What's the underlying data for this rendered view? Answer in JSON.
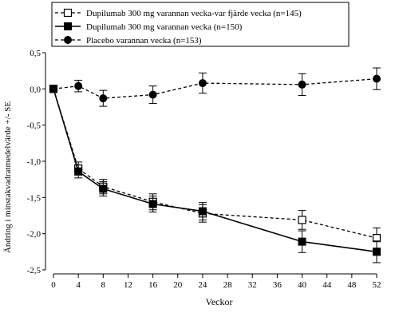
{
  "chart_data": {
    "type": "line",
    "xlabel": "Veckor",
    "ylabel": "Ändring i minstakvadratmedelvärde +/- SE",
    "x": [
      0,
      4,
      8,
      16,
      24,
      40,
      52
    ],
    "x_ticks": [
      "0",
      "4",
      "8",
      "12",
      "16",
      "20",
      "24",
      "28",
      "32",
      "36",
      "40",
      "44",
      "48",
      "52"
    ],
    "x_tick_values": [
      0,
      4,
      8,
      12,
      16,
      20,
      24,
      28,
      32,
      36,
      40,
      44,
      48,
      52
    ],
    "y_ticks": [
      "0,5",
      "0,0",
      "-0,5",
      "-1,0",
      "-1,5",
      "-2,0",
      "-2,5"
    ],
    "y_tick_values": [
      0.5,
      0.0,
      -0.5,
      -1.0,
      -1.5,
      -2.0,
      -2.5
    ],
    "xlim": [
      0,
      52
    ],
    "ylim": [
      -2.5,
      0.5
    ],
    "grid": false,
    "legend_position": "top-left",
    "series": [
      {
        "name": "Dupilumab 300 mg varannan vecka-var fjärde vecka (n=145)",
        "marker": "open-square",
        "line": "dashed",
        "values": [
          0.0,
          -1.1,
          -1.35,
          -1.56,
          -1.72,
          -1.81,
          -2.06
        ],
        "se": [
          0.02,
          0.09,
          0.1,
          0.11,
          0.12,
          0.13,
          0.14
        ]
      },
      {
        "name": "Dupilumab 300 mg varannan vecka (n=150)",
        "marker": "filled-square",
        "line": "solid",
        "values": [
          0.0,
          -1.14,
          -1.38,
          -1.59,
          -1.69,
          -2.11,
          -2.25
        ],
        "se": [
          0.02,
          0.09,
          0.1,
          0.11,
          0.12,
          0.15,
          0.15
        ]
      },
      {
        "name": "Placebo varannan vecka (n=153)",
        "marker": "filled-circle",
        "line": "dashed",
        "values": [
          0.0,
          0.04,
          -0.13,
          -0.08,
          0.08,
          0.06,
          0.14
        ],
        "se": [
          0.02,
          0.08,
          0.11,
          0.12,
          0.14,
          0.15,
          0.15
        ]
      }
    ]
  }
}
